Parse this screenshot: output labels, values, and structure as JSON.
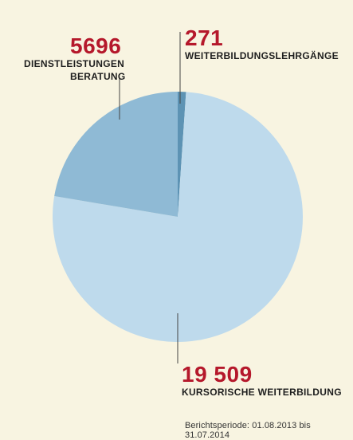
{
  "chart_data": {
    "type": "pie",
    "slices": [
      {
        "label": "Weiterbildungslehrgänge",
        "value": 271,
        "value_text": "271",
        "color": "#5d93b4"
      },
      {
        "label": "Kursorische Weiterbildung",
        "value": 19509,
        "value_text": "19 509",
        "color": "#bedaec"
      },
      {
        "label": "Dienstleistungen Beratung",
        "value": 5696,
        "value_text": "5696",
        "color": "#8fbad5"
      }
    ],
    "label_lines": {
      "dienst_1": "Dienstleistungen",
      "dienst_2": "Beratung"
    },
    "value_color": "#b5182b",
    "footer": "Berichtsperiode: 01.08.2013 bis 31.07.2014"
  }
}
